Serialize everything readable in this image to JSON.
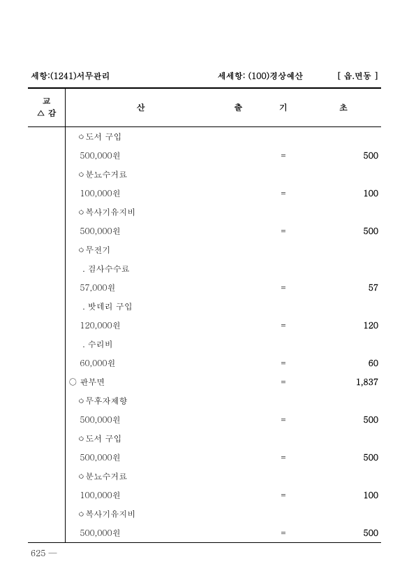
{
  "header": {
    "left": "세항:(1241)서무관리",
    "mid": "세세항:  (100)경상예산",
    "right": "[ 읍.면동      ]"
  },
  "thead": {
    "col1_line1": "교",
    "col1_line2": "△ 감",
    "col2": "산",
    "col3": "출",
    "col4": "기",
    "col5": "초"
  },
  "rows": [
    {
      "desc": "   ㅇ도서 구입",
      "eq": "",
      "val": ""
    },
    {
      "desc": "    500,000원",
      "eq": "=",
      "val": "500"
    },
    {
      "desc": "   ㅇ분뇨수거료",
      "eq": "",
      "val": ""
    },
    {
      "desc": "    100,000원",
      "eq": "=",
      "val": "100"
    },
    {
      "desc": "   ㅇ복사기유지비",
      "eq": "",
      "val": ""
    },
    {
      "desc": "    500,000원",
      "eq": "=",
      "val": "500"
    },
    {
      "desc": "   ㅇ무전기",
      "eq": "",
      "val": ""
    },
    {
      "desc": "     . 검사수수료",
      "eq": "",
      "val": ""
    },
    {
      "desc": "    57,000원",
      "eq": "=",
      "val": "57"
    },
    {
      "desc": "     . 밧데리 구입",
      "eq": "",
      "val": ""
    },
    {
      "desc": "    120,000원",
      "eq": "=",
      "val": "120"
    },
    {
      "desc": "     . 수리비",
      "eq": "",
      "val": ""
    },
    {
      "desc": "    60,000원",
      "eq": "=",
      "val": "60"
    },
    {
      "desc": "○ 판부면",
      "eq": "=",
      "val": "1,837"
    },
    {
      "desc": "   ㅇ무후자제향",
      "eq": "",
      "val": ""
    },
    {
      "desc": "    500,000원",
      "eq": "=",
      "val": "500"
    },
    {
      "desc": "   ㅇ도서 구입",
      "eq": "",
      "val": ""
    },
    {
      "desc": "    500,000원",
      "eq": "=",
      "val": "500"
    },
    {
      "desc": "   ㅇ분뇨수거료",
      "eq": "",
      "val": ""
    },
    {
      "desc": "    100,000원",
      "eq": "=",
      "val": "100"
    },
    {
      "desc": "   ㅇ복사기유지비",
      "eq": "",
      "val": ""
    },
    {
      "desc": "    500,000원",
      "eq": "=",
      "val": "500"
    }
  ],
  "pagenum": "625 —"
}
